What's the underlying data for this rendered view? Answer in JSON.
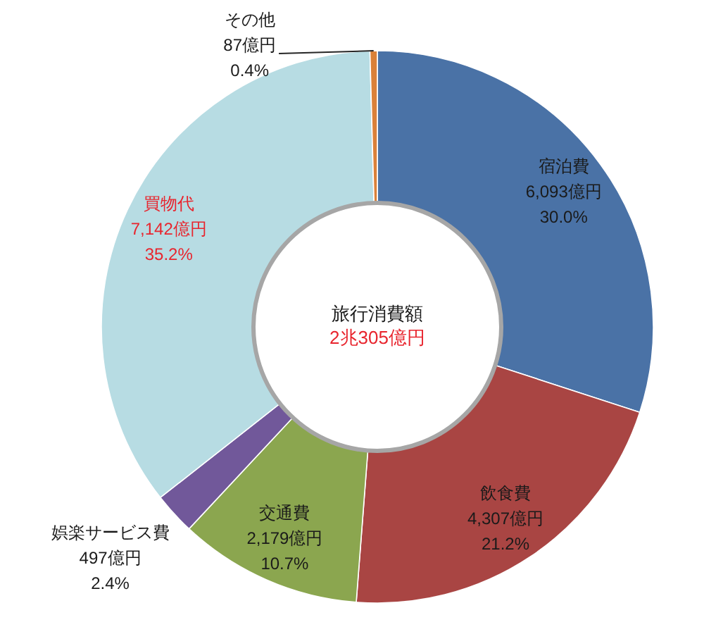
{
  "chart_data": {
    "type": "donut",
    "categories": [
      "宿泊費",
      "飲食費",
      "交通費",
      "娯楽サービス費",
      "買物代",
      "その他"
    ],
    "values": [
      6093,
      4307,
      2179,
      497,
      7142,
      87
    ],
    "colors": [
      "#4a72a6",
      "#a94543",
      "#8ba64f",
      "#71589a",
      "#b7dce3",
      "#da8139"
    ],
    "value_labels": [
      "6,093億円\n30.0%",
      "4,307億円\n21.2%",
      "2,179億円\n10.7%",
      "497億円\n2.4%",
      "7,142億円\n35.2%",
      "87億円\n0.4%"
    ],
    "annotations": [
      "旅行消費額",
      "2兆305億円"
    ]
  }
}
